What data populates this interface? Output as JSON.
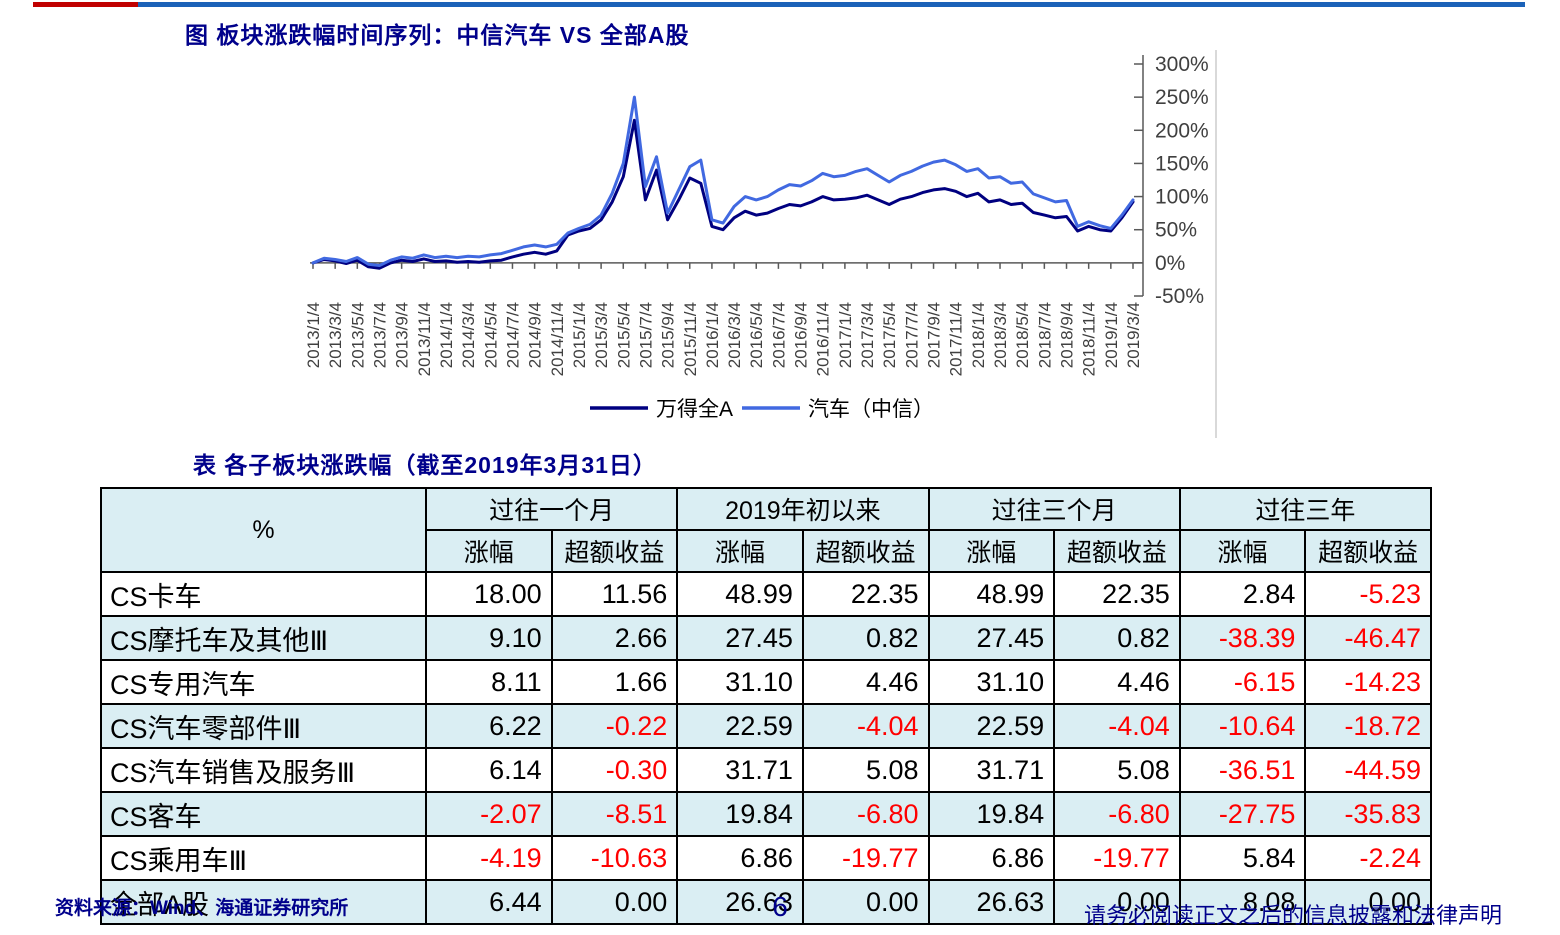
{
  "top_rule": {
    "red_color": "#C00000",
    "blue_color": "#1B62B8"
  },
  "figure": {
    "title": "图 板块涨跌幅时间序列：中信汽车 VS 全部A股"
  },
  "chart_data": {
    "type": "line",
    "title": "图 板块涨跌幅时间序列：中信汽车 VS 全部A股",
    "xlabel": "",
    "ylabel": "",
    "ylim": [
      -50,
      300
    ],
    "grid": false,
    "legend_position": "bottom",
    "y_ticks": [
      {
        "label": "300%",
        "value": 300
      },
      {
        "label": "250%",
        "value": 250
      },
      {
        "label": "200%",
        "value": 200
      },
      {
        "label": "150%",
        "value": 150
      },
      {
        "label": "100%",
        "value": 100
      },
      {
        "label": "50%",
        "value": 50
      },
      {
        "label": "0%",
        "value": 0
      },
      {
        "label": "-50%",
        "value": -50
      }
    ],
    "x_tick_labels": [
      "2013/1/4",
      "2013/3/4",
      "2013/5/4",
      "2013/7/4",
      "2013/9/4",
      "2013/11/4",
      "2014/1/4",
      "2014/3/4",
      "2014/5/4",
      "2014/7/4",
      "2014/9/4",
      "2014/11/4",
      "2015/1/4",
      "2015/3/4",
      "2015/5/4",
      "2015/7/4",
      "2015/9/4",
      "2015/11/4",
      "2016/1/4",
      "2016/3/4",
      "2016/5/4",
      "2016/7/4",
      "2016/9/4",
      "2016/11/4",
      "2017/1/4",
      "2017/3/4",
      "2017/5/4",
      "2017/7/4",
      "2017/9/4",
      "2017/11/4",
      "2018/1/4",
      "2018/3/4",
      "2018/5/4",
      "2018/7/4",
      "2018/9/4",
      "2018/11/4",
      "2019/1/4",
      "2019/3/4"
    ],
    "series": [
      {
        "name": "万得全A",
        "color": "#000080",
        "values": [
          0,
          5,
          3,
          -1,
          4,
          -6,
          -8,
          0,
          4,
          2,
          6,
          2,
          3,
          1,
          2,
          1,
          3,
          4,
          9,
          13,
          16,
          13,
          18,
          42,
          48,
          52,
          65,
          92,
          130,
          215,
          95,
          140,
          65,
          95,
          128,
          120,
          55,
          50,
          68,
          78,
          72,
          75,
          82,
          88,
          86,
          92,
          100,
          95,
          96,
          98,
          102,
          95,
          88,
          96,
          100,
          106,
          110,
          112,
          108,
          100,
          105,
          92,
          95,
          88,
          90,
          76,
          72,
          68,
          70,
          48,
          55,
          50,
          48,
          68,
          92
        ]
      },
      {
        "name": "汽车（中信）",
        "color": "#4169E1",
        "values": [
          0,
          7,
          5,
          2,
          8,
          -2,
          -4,
          4,
          9,
          7,
          12,
          8,
          10,
          8,
          10,
          9,
          12,
          14,
          19,
          24,
          27,
          24,
          28,
          45,
          52,
          58,
          72,
          105,
          150,
          250,
          115,
          160,
          75,
          110,
          145,
          155,
          65,
          60,
          85,
          100,
          95,
          100,
          110,
          118,
          116,
          124,
          135,
          130,
          132,
          138,
          142,
          132,
          122,
          132,
          138,
          146,
          152,
          155,
          148,
          138,
          142,
          128,
          130,
          120,
          122,
          104,
          98,
          92,
          94,
          55,
          62,
          56,
          52,
          72,
          95
        ]
      }
    ]
  },
  "table": {
    "title": "表 各子板块涨跌幅（截至2019年3月31日）",
    "corner_label": "%",
    "group_headers": [
      "过往一个月",
      "2019年初以来",
      "过往三个月",
      "过往三年"
    ],
    "sub_headers": [
      "涨幅",
      "超额收益"
    ],
    "rows": [
      {
        "name": "CS卡车",
        "values": [
          "18.00",
          "11.56",
          "48.99",
          "22.35",
          "48.99",
          "22.35",
          "2.84",
          "-5.23"
        ]
      },
      {
        "name": "CS摩托车及其他Ⅲ",
        "values": [
          "9.10",
          "2.66",
          "27.45",
          "0.82",
          "27.45",
          "0.82",
          "-38.39",
          "-46.47"
        ]
      },
      {
        "name": "CS专用汽车",
        "values": [
          "8.11",
          "1.66",
          "31.10",
          "4.46",
          "31.10",
          "4.46",
          "-6.15",
          "-14.23"
        ]
      },
      {
        "name": "CS汽车零部件Ⅲ",
        "values": [
          "6.22",
          "-0.22",
          "22.59",
          "-4.04",
          "22.59",
          "-4.04",
          "-10.64",
          "-18.72"
        ]
      },
      {
        "name": "CS汽车销售及服务Ⅲ",
        "values": [
          "6.14",
          "-0.30",
          "31.71",
          "5.08",
          "31.71",
          "5.08",
          "-36.51",
          "-44.59"
        ]
      },
      {
        "name": "CS客车",
        "values": [
          "-2.07",
          "-8.51",
          "19.84",
          "-6.80",
          "19.84",
          "-6.80",
          "-27.75",
          "-35.83"
        ]
      },
      {
        "name": "CS乘用车Ⅲ",
        "values": [
          "-4.19",
          "-10.63",
          "6.86",
          "-19.77",
          "6.86",
          "-19.77",
          "5.84",
          "-2.24"
        ]
      },
      {
        "name": "全部A股",
        "values": [
          "6.44",
          "0.00",
          "26.63",
          "0.00",
          "26.63",
          "0.00",
          "8.08",
          "0.00"
        ]
      }
    ]
  },
  "footer": {
    "source": "资料来源：Wind、海通证券研究所",
    "page_number": "6",
    "disclaimer": "请务必阅读正文之后的信息披露和法律声明"
  }
}
